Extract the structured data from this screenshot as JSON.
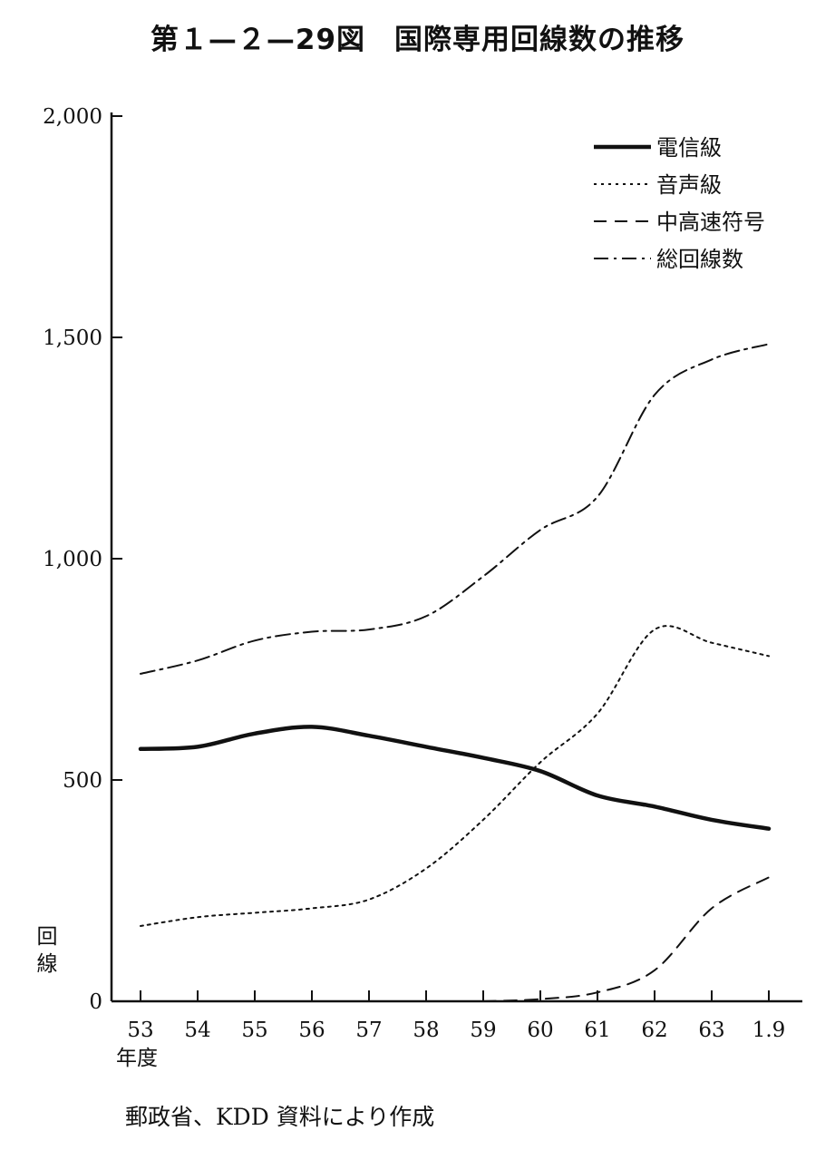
{
  "figure_title": "第１—２—29図　国際専用回線数の推移",
  "source_note": "郵政省、KDD 資料により作成",
  "chart_data": {
    "type": "line",
    "title": "第１—２—29図　国際専用回線数の推移",
    "ylabel": "回線",
    "xlabel": "年度",
    "x": [
      "53",
      "54",
      "55",
      "56",
      "57",
      "58",
      "59",
      "60",
      "61",
      "62",
      "63",
      "1.9"
    ],
    "ylim": [
      0,
      2000
    ],
    "yticks": [
      0,
      500,
      1000,
      1500,
      2000
    ],
    "ytick_labels": [
      "0",
      "500",
      "1,000",
      "1,500",
      "2,000"
    ],
    "legend_position": "top-right",
    "grid": false,
    "series": [
      {
        "name": "電信級",
        "style": "solid-bold",
        "values": [
          570,
          575,
          605,
          620,
          600,
          575,
          550,
          520,
          465,
          440,
          410,
          390
        ]
      },
      {
        "name": "音声級",
        "style": "dotted",
        "values": [
          170,
          190,
          200,
          210,
          230,
          300,
          410,
          540,
          650,
          840,
          810,
          780
        ]
      },
      {
        "name": "中高速符号",
        "style": "dashed",
        "values": [
          null,
          null,
          null,
          null,
          null,
          null,
          0,
          5,
          20,
          70,
          210,
          280
        ]
      },
      {
        "name": "総回線数",
        "style": "dash-dot",
        "values": [
          740,
          770,
          815,
          835,
          840,
          870,
          960,
          1065,
          1140,
          1370,
          1450,
          1485
        ]
      }
    ],
    "line_color": "#111111",
    "background": "#ffffff"
  }
}
